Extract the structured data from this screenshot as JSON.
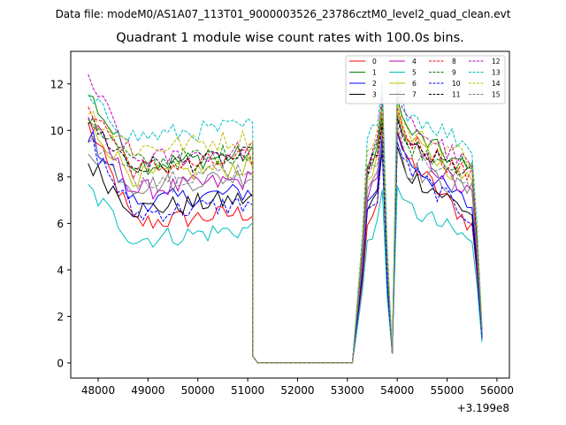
{
  "header": {
    "suptitle": "Data file: modeM0/AS1A07_113T01_9000003526_23786cztM0_level2_quad_clean.evt"
  },
  "chart_data": {
    "type": "line",
    "title": "Quadrant 1 module wise count rates with 100.0s bins.",
    "xlabel": "",
    "ylabel": "",
    "offset_text": "+3.199e8",
    "xlim": [
      47450,
      56250
    ],
    "ylim": [
      -0.65,
      13.4
    ],
    "xticks": [
      48000,
      49000,
      50000,
      51000,
      52000,
      53000,
      54000,
      55000,
      56000
    ],
    "xtick_labels": [
      "48000",
      "49000",
      "50000",
      "51000",
      "52000",
      "53000",
      "54000",
      "55000",
      "56000"
    ],
    "yticks": [
      0,
      2,
      4,
      6,
      8,
      10,
      12
    ],
    "ytick_labels": [
      "0",
      "2",
      "4",
      "6",
      "8",
      "10",
      "12"
    ],
    "grid": false,
    "legend_position": "top-right",
    "x": {
      "seg1_start": 47800,
      "seg1_end": 51200,
      "seg2_start": 51200,
      "seg2_end": 53100,
      "seg3_start": 53100,
      "seg3_end": 55700,
      "step": 100
    },
    "series": [
      {
        "name": "0",
        "color": "#ff0000",
        "dash": "solid",
        "level": 6.3,
        "start": 10.2,
        "peak": 10.0
      },
      {
        "name": "1",
        "color": "#008000",
        "dash": "solid",
        "level": 8.8,
        "start": 11.6,
        "peak": 11.4
      },
      {
        "name": "2",
        "color": "#0000ff",
        "dash": "solid",
        "level": 7.2,
        "start": 9.9,
        "peak": 9.9
      },
      {
        "name": "3",
        "color": "#000000",
        "dash": "solid",
        "level": 6.9,
        "start": 8.6,
        "peak": 9.3
      },
      {
        "name": "4",
        "color": "#bf00bf",
        "dash": "solid",
        "level": 7.7,
        "start": 10.5,
        "peak": 10.6
      },
      {
        "name": "5",
        "color": "#00bfbf",
        "dash": "solid",
        "level": 5.6,
        "start": 7.5,
        "peak": 7.6
      },
      {
        "name": "6",
        "color": "#bfbf00",
        "dash": "solid",
        "level": 8.3,
        "start": 10.3,
        "peak": 10.9
      },
      {
        "name": "7",
        "color": "#808080",
        "dash": "solid",
        "level": 7.9,
        "start": 9.2,
        "peak": 9.5
      },
      {
        "name": "8",
        "color": "#ff0000",
        "dash": "dashed",
        "level": 8.6,
        "start": 11.2,
        "peak": 11.0
      },
      {
        "name": "9",
        "color": "#008000",
        "dash": "dashed",
        "level": 8.9,
        "start": 10.6,
        "peak": 10.7
      },
      {
        "name": "10",
        "color": "#0000ff",
        "dash": "dashed",
        "level": 6.7,
        "start": 9.6,
        "peak": 9.5
      },
      {
        "name": "11",
        "color": "#000000",
        "dash": "dashed",
        "level": 8.7,
        "start": 10.4,
        "peak": 10.5
      },
      {
        "name": "12",
        "color": "#bf00bf",
        "dash": "dashed",
        "level": 9.0,
        "start": 12.3,
        "peak": 11.8
      },
      {
        "name": "13",
        "color": "#00bfbf",
        "dash": "dashed",
        "level": 10.0,
        "start": 11.3,
        "peak": 12.3
      },
      {
        "name": "14",
        "color": "#bfbf00",
        "dash": "dashed",
        "level": 9.5,
        "start": 10.8,
        "peak": 11.2
      },
      {
        "name": "15",
        "color": "#808080",
        "dash": "dashed",
        "level": 8.2,
        "start": 9.6,
        "peak": 10.2
      }
    ]
  }
}
